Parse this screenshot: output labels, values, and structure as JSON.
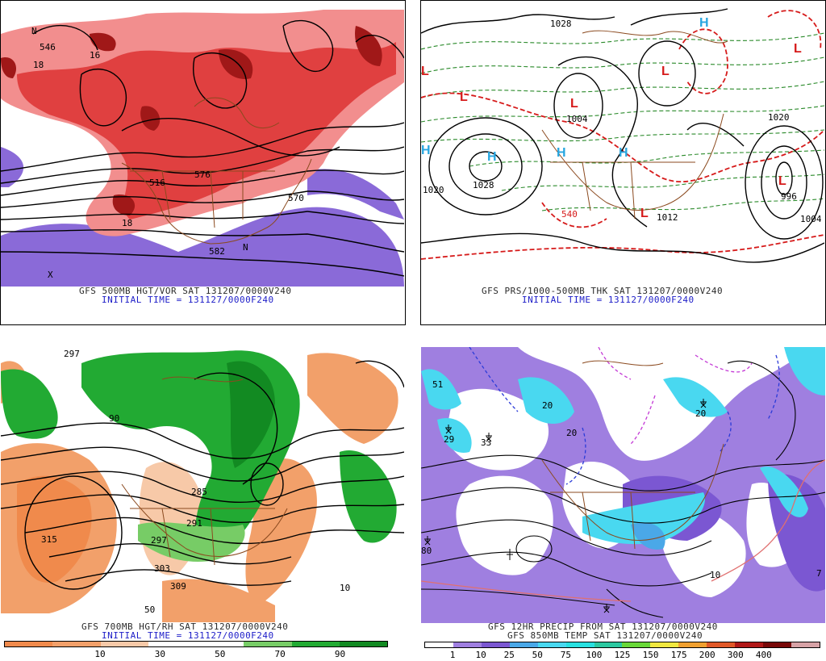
{
  "panels": {
    "tl": {
      "caption_line1": "GFS 500MB HGT/VOR SAT 131207/0000V240",
      "caption_line2": "INITIAL TIME = 131127/0000F240",
      "labels": {
        "l546": "546",
        "l576": "576",
        "l570": "570",
        "l582": "582",
        "l516": "516",
        "l18a": "18",
        "l18b": "18",
        "l16": "16",
        "lN1": "N",
        "lN2": "N",
        "lX": "X"
      }
    },
    "tr": {
      "caption_line1": "GFS PRS/1000-500MB THK SAT 131207/0000V240",
      "caption_line2": "INITIAL TIME = 131127/0000F240",
      "labels": {
        "p1028a": "1028",
        "p1028b": "1028",
        "p1020": "1020",
        "p1020b": "1020",
        "p1004": "1004",
        "p996": "996",
        "p1004b": "1004",
        "p1012": "1012",
        "p540": "540"
      }
    },
    "bl": {
      "caption_line1": "GFS 700MB HGT/RH SAT 131207/0000V240",
      "caption_line2": "INITIAL TIME = 131127/0000F240",
      "labels": {
        "h315": "315",
        "h297": "297",
        "h303": "303",
        "h309": "309",
        "h285": "285",
        "h291": "291",
        "h297b": "297",
        "h10": "10",
        "h50": "50",
        "h90": "90"
      }
    },
    "br": {
      "caption_line1": "GFS 12HR PRECIP FROM SAT 131207/0000V240",
      "caption_line2": "GFS 850MB TEMP SAT 131207/0000V240",
      "labels": {
        "t20a": "20",
        "t20b": "20",
        "t20c": "20",
        "t29": "29",
        "t33": "33",
        "t51": "51",
        "t10": "10",
        "t80": "80",
        "t7": "7"
      }
    }
  },
  "rh_scale": {
    "colors": [
      "#f08a4c",
      "#f2a06a",
      "#f7c9a8",
      "#ffffff",
      "#ffffff",
      "#77cc66",
      "#22aa33",
      "#128a22"
    ],
    "ticks": [
      "10",
      "30",
      "50",
      "70",
      "90"
    ]
  },
  "precip_scale": {
    "colors": [
      "#ffffff",
      "#9f7fe0",
      "#7b57d2",
      "#4aa8e8",
      "#49d8f0",
      "#28e0e0",
      "#2cc8a0",
      "#68d838",
      "#f0e840",
      "#f0a030",
      "#e05828",
      "#b01818",
      "#780808",
      "#d6a2a6"
    ],
    "ticks": [
      "1",
      "10",
      "25",
      "50",
      "75",
      "100",
      "125",
      "150",
      "175",
      "200",
      "300",
      "400"
    ]
  },
  "colors": {
    "vort_dark": "#a01818",
    "vort_mid": "#e04040",
    "vort_light": "#f28e8e",
    "vort_neg": "#8a6ad8",
    "thick_green": "#2a8a2a",
    "thick_red": "#d61a1a",
    "high_blue": "#27a6e0",
    "low_red": "#d61a1a",
    "border_brown": "#8b4a1f"
  }
}
